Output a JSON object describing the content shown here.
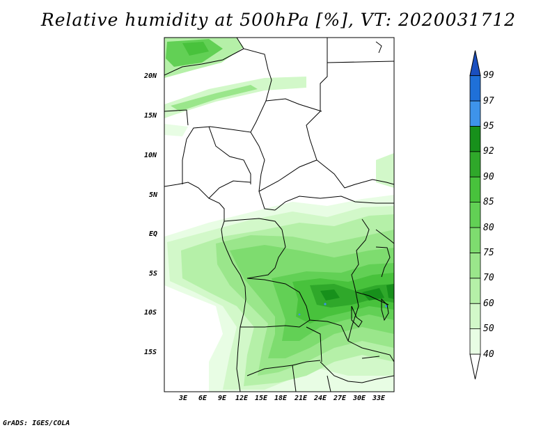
{
  "title": "Relative humidity at 500hPa [%], VT: 2020031712",
  "credit": "GrADS: IGES/COLA",
  "map": {
    "lat_labels": [
      "20N",
      "15N",
      "10N",
      "5N",
      "EQ",
      "5S",
      "10S",
      "15S"
    ],
    "lon_labels": [
      "3E",
      "6E",
      "9E",
      "12E",
      "15E",
      "18E",
      "21E",
      "24E",
      "27E",
      "30E",
      "33E"
    ]
  },
  "colorbar": {
    "levels": [
      "40",
      "50",
      "60",
      "70",
      "75",
      "80",
      "85",
      "90",
      "92",
      "95",
      "97",
      "99"
    ],
    "colors": {
      "40-50": "#e8fde4",
      "50-60": "#d2f8c9",
      "60-70": "#b5f0a8",
      "70-75": "#9ae68b",
      "75-80": "#7edc6f",
      "80-85": "#62d055",
      "85-90": "#48c23c",
      "90-92": "#2fa82a",
      "92-95": "#17901b",
      "95-97": "#3e93ea",
      "97-99": "#1f70d8",
      "99+": "#1a4fbf"
    }
  }
}
